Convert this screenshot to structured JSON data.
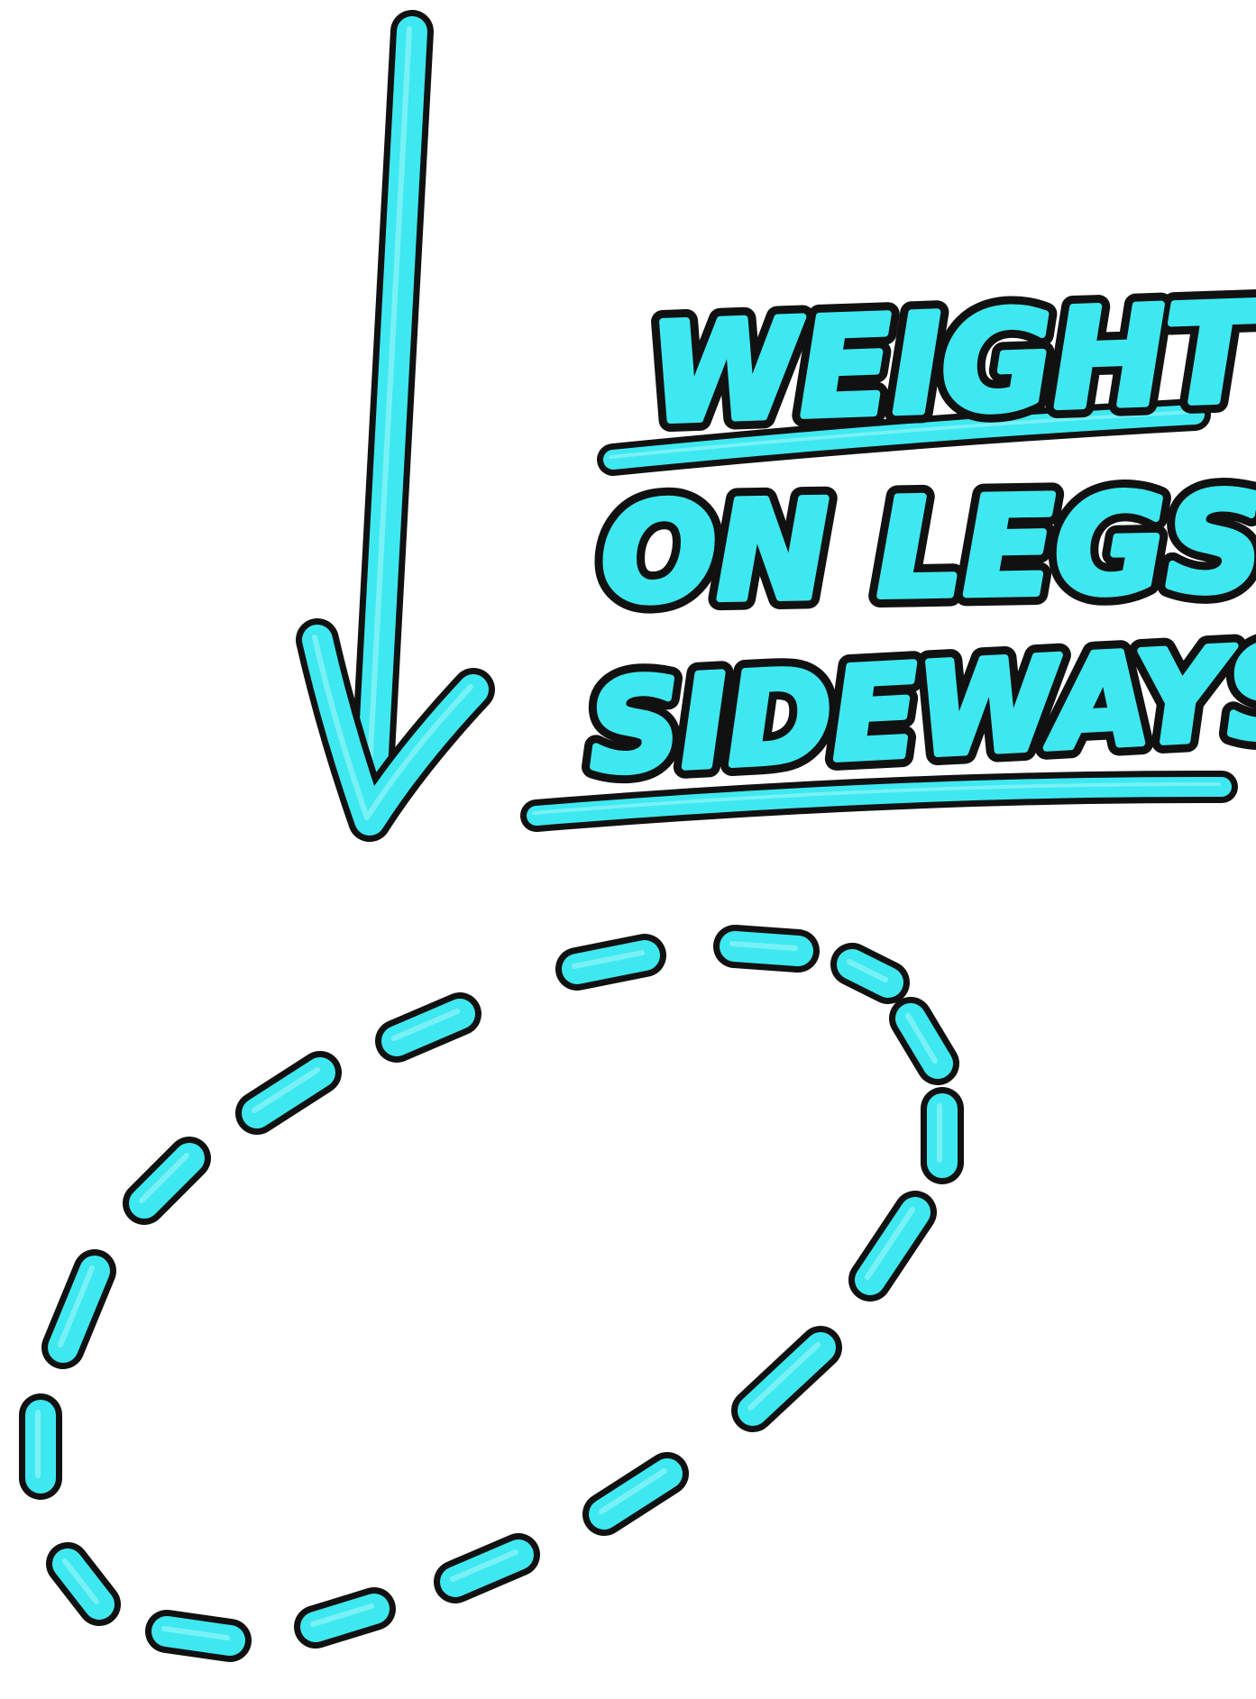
{
  "diagram": {
    "labels": {
      "line1": "WEIGHT",
      "line2": "ON LEGS",
      "line3": "SIDEWAYS"
    },
    "colors": {
      "fill": "#3ee8f0",
      "outline": "#111111",
      "background": "#ffffff"
    },
    "arrow_direction": "down",
    "loop_style": "dashed"
  }
}
